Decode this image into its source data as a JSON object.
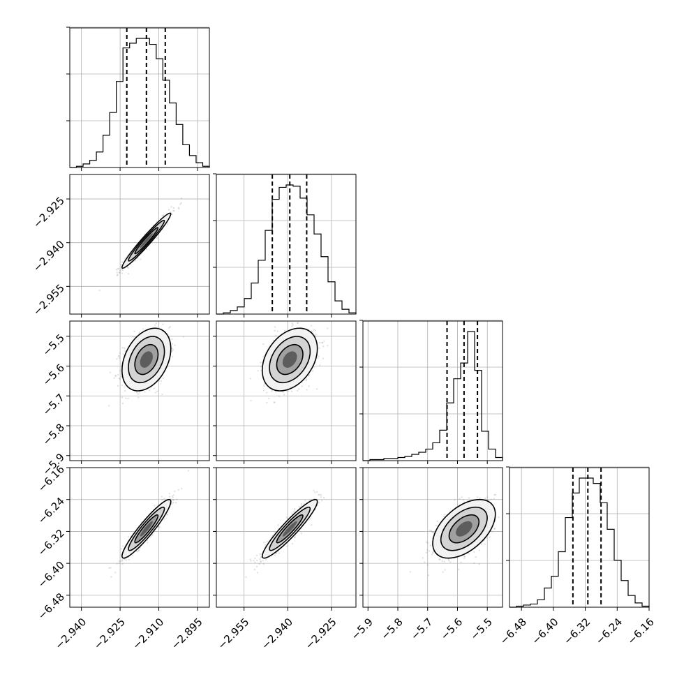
{
  "chart_data": {
    "type": "corner",
    "parameters": [
      {
        "range": [
          -2.9445,
          -2.8904
        ],
        "ticks": [
          "-2.940",
          "-2.925",
          "-2.910",
          "-2.895"
        ],
        "tick_values": [
          -2.94,
          -2.925,
          -2.91,
          -2.895
        ],
        "quantiles": [
          -2.9224,
          -2.9148,
          -2.9075
        ],
        "mean": -2.9148,
        "sd": 0.0045
      },
      {
        "range": [
          -2.9645,
          -2.9166
        ],
        "ticks": [
          "-2.955",
          "-2.940",
          "-2.925"
        ],
        "tick_values": [
          -2.955,
          -2.94,
          -2.925
        ],
        "quantiles": [
          -2.9453,
          -2.9393,
          -2.9335
        ],
        "mean": -2.9393,
        "sd": 0.0045
      },
      {
        "range": [
          -5.917,
          -5.449
        ],
        "ticks": [
          "-5.9",
          "-5.8",
          "-5.7",
          "-5.6",
          "-5.5"
        ],
        "tick_values": [
          -5.9,
          -5.8,
          -5.7,
          -5.6,
          -5.5
        ],
        "quantiles": [
          -5.635,
          -5.578,
          -5.533
        ],
        "mean": -5.578,
        "sd": 0.05
      },
      {
        "range": [
          -6.51,
          -6.16
        ],
        "ticks": [
          "-6.48",
          "-6.40",
          "-6.32",
          "-6.24",
          "-6.16"
        ],
        "tick_values": [
          -6.48,
          -6.4,
          -6.32,
          -6.24,
          -6.16
        ],
        "quantiles": [
          -6.351,
          -6.3135,
          -6.2805
        ],
        "mean": -6.3135,
        "sd": 0.035
      }
    ],
    "correlations": {
      "0-1": 0.97,
      "0-2": 0.35,
      "1-2": 0.35,
      "0-3": 0.93,
      "1-3": 0.93,
      "2-3": 0.5
    },
    "histograms": [
      [
        0,
        1,
        3,
        6,
        13,
        27,
        46,
        72,
        100,
        104,
        108,
        108,
        103,
        91,
        73,
        54,
        36,
        19,
        10,
        4,
        1
      ],
      [
        0,
        1,
        3,
        6,
        13,
        26,
        45,
        70,
        96,
        106,
        108,
        107,
        97,
        83,
        67,
        48,
        27,
        11,
        4,
        1
      ],
      [
        0,
        1,
        1,
        2,
        2,
        3,
        4,
        6,
        8,
        11,
        17,
        29,
        55,
        78,
        93,
        123,
        86,
        28,
        11,
        3
      ],
      [
        0,
        1,
        2,
        3,
        7,
        18,
        29,
        52,
        84,
        107,
        121,
        121,
        116,
        98,
        73,
        44,
        25,
        11,
        4,
        1
      ]
    ],
    "grid": true,
    "title": "",
    "xlabel": "",
    "ylabel": ""
  }
}
